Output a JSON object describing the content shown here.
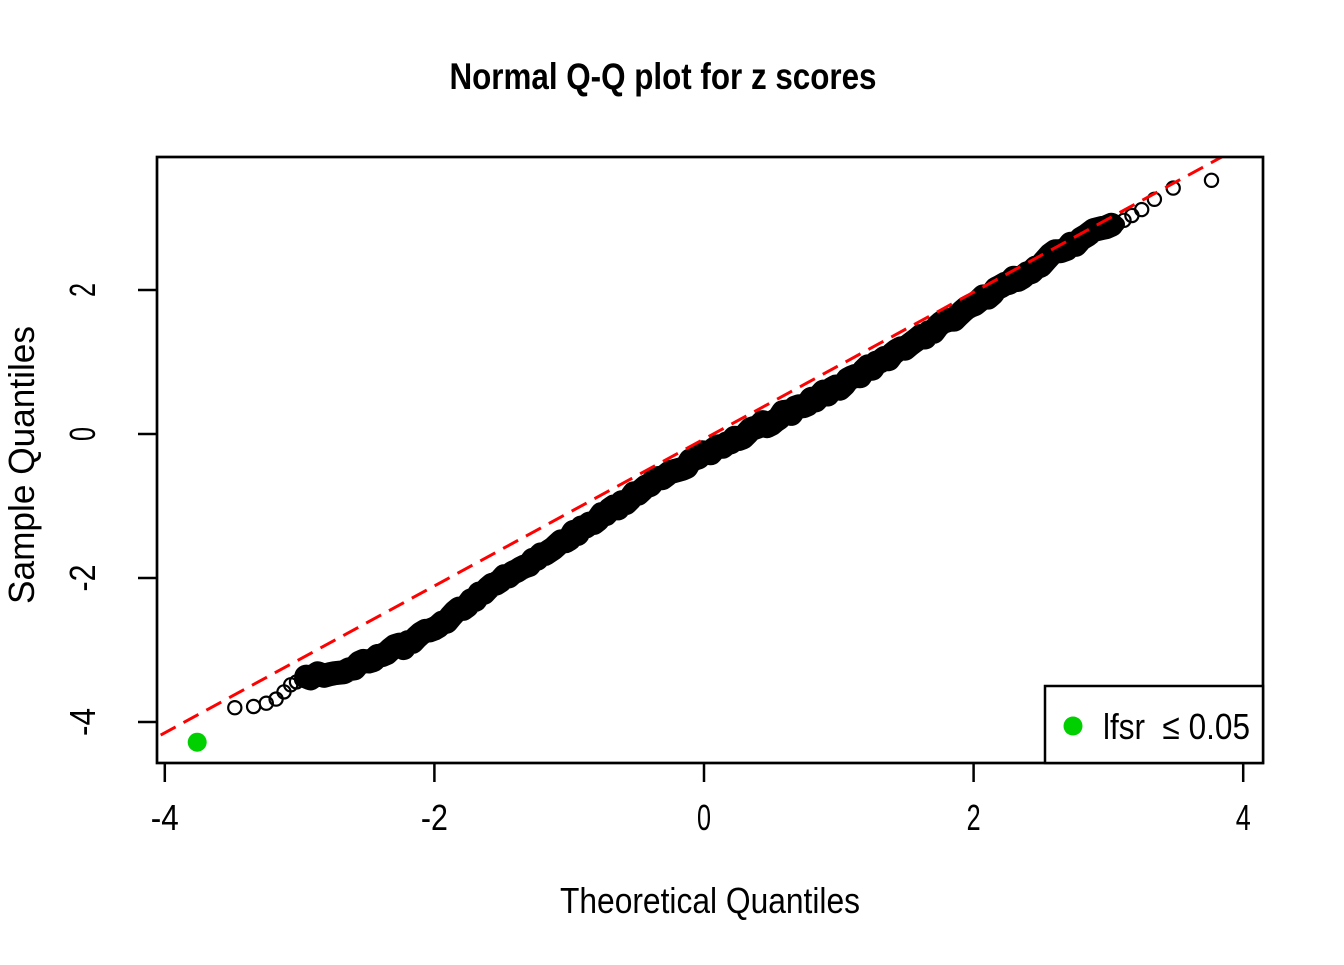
{
  "chart_data": {
    "type": "scatter",
    "subtype": "normal-qq-plot",
    "title": "Normal Q-Q plot for z scores",
    "xlabel": "Theoretical Quantiles",
    "ylabel": "Sample Quantiles",
    "x_ticks": [
      -4,
      -2,
      0,
      2,
      4
    ],
    "x_tick_labels": [
      "-4",
      "-2",
      "0",
      "2",
      "4"
    ],
    "y_ticks": [
      2,
      0,
      -2,
      -4
    ],
    "y_tick_labels": [
      "2",
      "0",
      "-2",
      "-4"
    ],
    "xlim": [
      -4.06,
      4.15
    ],
    "ylim": [
      -4.57,
      3.85
    ],
    "grid": false,
    "point_color": "#000000",
    "qq_curve_control_points": [
      [
        -3.76,
        -4.28
      ],
      [
        -3.48,
        -3.8
      ],
      [
        -3.3,
        -3.78
      ],
      [
        -3.16,
        -3.67
      ],
      [
        -3.05,
        -3.45
      ],
      [
        -2.9,
        -3.36
      ],
      [
        -2.67,
        -3.28
      ],
      [
        -2.5,
        -3.14
      ],
      [
        -2.25,
        -2.95
      ],
      [
        -2.0,
        -2.7
      ],
      [
        -1.75,
        -2.38
      ],
      [
        -1.5,
        -2.02
      ],
      [
        -1.25,
        -1.72
      ],
      [
        -1.0,
        -1.42
      ],
      [
        -0.75,
        -1.12
      ],
      [
        -0.5,
        -0.83
      ],
      [
        -0.25,
        -0.55
      ],
      [
        0.0,
        -0.28
      ],
      [
        0.25,
        -0.05
      ],
      [
        0.5,
        0.18
      ],
      [
        0.75,
        0.42
      ],
      [
        1.0,
        0.66
      ],
      [
        1.25,
        0.94
      ],
      [
        1.5,
        1.22
      ],
      [
        1.75,
        1.51
      ],
      [
        2.0,
        1.8
      ],
      [
        2.2,
        2.05
      ],
      [
        2.45,
        2.3
      ],
      [
        2.7,
        2.62
      ],
      [
        2.9,
        2.8
      ],
      [
        3.1,
        2.95
      ],
      [
        3.25,
        3.12
      ],
      [
        3.42,
        3.38
      ],
      [
        3.63,
        3.5
      ],
      [
        3.8,
        3.53
      ]
    ],
    "highlight_point": {
      "x": -3.76,
      "y": -4.28,
      "color": "#00D000"
    },
    "reference_line": {
      "style": "dashed",
      "color": "#FF0000",
      "slope": 1.02,
      "intercept": -0.07
    },
    "legend": {
      "position": "bottomright",
      "items": [
        {
          "label": "lfsr  ≤ 0.05",
          "marker_color": "#00D000"
        }
      ]
    },
    "render": {
      "n_points": 6000,
      "seed": 7,
      "band_t_range": [
        -2.98,
        3.05
      ],
      "tail_circle_abs_t": 2.88,
      "noise_amp": 0.045
    }
  }
}
